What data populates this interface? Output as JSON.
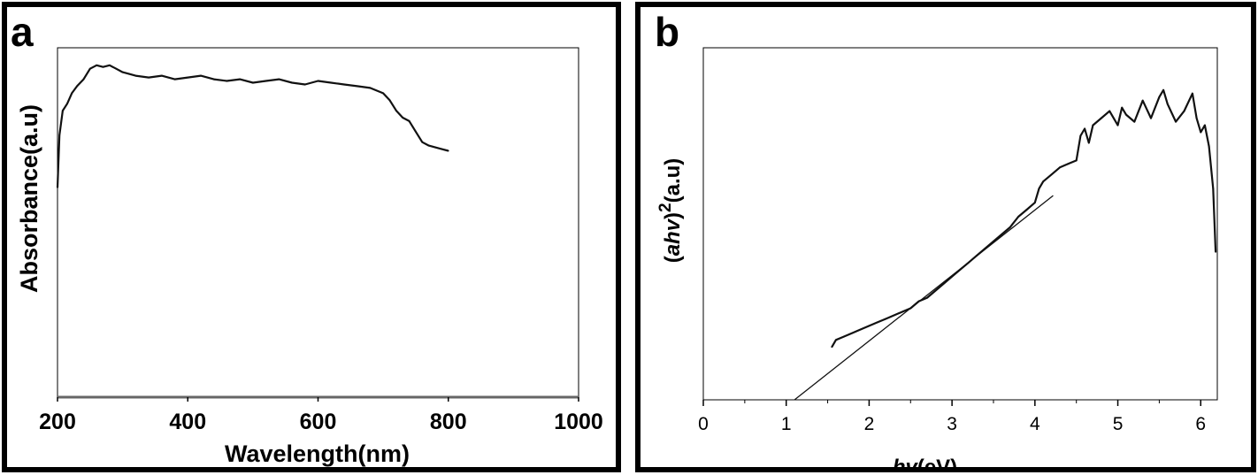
{
  "chart_data": [
    {
      "panel_label": "a",
      "type": "line",
      "xlabel": "Wavelength(nm)",
      "ylabel": "Absorbance(a.u)",
      "xlim": [
        200,
        1000
      ],
      "ylim": [
        0,
        1
      ],
      "xticks": [
        200,
        400,
        600,
        800,
        1000
      ],
      "grid": false,
      "series": [
        {
          "x": [
            200,
            203,
            208,
            215,
            222,
            230,
            240,
            250,
            260,
            270,
            280,
            290,
            300,
            310,
            320,
            340,
            360,
            380,
            400,
            420,
            440,
            460,
            480,
            500,
            520,
            540,
            560,
            580,
            600,
            620,
            640,
            660,
            680,
            700,
            710,
            720,
            730,
            740,
            750,
            760,
            770,
            780,
            790,
            800
          ],
          "y": [
            0.6,
            0.75,
            0.82,
            0.84,
            0.87,
            0.89,
            0.91,
            0.94,
            0.95,
            0.945,
            0.95,
            0.94,
            0.93,
            0.925,
            0.92,
            0.915,
            0.92,
            0.91,
            0.915,
            0.92,
            0.91,
            0.905,
            0.91,
            0.9,
            0.905,
            0.91,
            0.9,
            0.895,
            0.905,
            0.9,
            0.895,
            0.89,
            0.885,
            0.87,
            0.85,
            0.82,
            0.8,
            0.79,
            0.76,
            0.73,
            0.72,
            0.715,
            0.71,
            0.705
          ]
        }
      ]
    },
    {
      "panel_label": "b",
      "type": "line",
      "xlabel_parts": [
        "hv",
        "(eV)"
      ],
      "ylabel_parts": [
        "(",
        "ahv",
        ")",
        "2",
        "(a.u)"
      ],
      "xlim": [
        0,
        6.2
      ],
      "ylim": [
        0,
        1
      ],
      "xticks": [
        0,
        1,
        2,
        3,
        4,
        5,
        6
      ],
      "grid": false,
      "series": [
        {
          "x": [
            1.55,
            1.6,
            1.7,
            1.8,
            1.9,
            2.0,
            2.1,
            2.2,
            2.3,
            2.4,
            2.5,
            2.6,
            2.7,
            2.8,
            2.9,
            3.0,
            3.1,
            3.2,
            3.3,
            3.4,
            3.5,
            3.6,
            3.7,
            3.8,
            3.9,
            4.0,
            4.05,
            4.1,
            4.2,
            4.3,
            4.4,
            4.5,
            4.55,
            4.6,
            4.65,
            4.7,
            4.8,
            4.9,
            5.0,
            5.05,
            5.1,
            5.2,
            5.3,
            5.4,
            5.5,
            5.55,
            5.6,
            5.7,
            5.8,
            5.9,
            5.95,
            6.0,
            6.05,
            6.1,
            6.15,
            6.18
          ],
          "y": [
            0.15,
            0.17,
            0.18,
            0.19,
            0.2,
            0.21,
            0.22,
            0.23,
            0.24,
            0.25,
            0.26,
            0.28,
            0.29,
            0.31,
            0.33,
            0.35,
            0.37,
            0.39,
            0.41,
            0.43,
            0.45,
            0.47,
            0.49,
            0.52,
            0.54,
            0.56,
            0.6,
            0.62,
            0.64,
            0.66,
            0.67,
            0.68,
            0.75,
            0.77,
            0.73,
            0.78,
            0.8,
            0.82,
            0.78,
            0.83,
            0.81,
            0.79,
            0.85,
            0.8,
            0.86,
            0.88,
            0.84,
            0.79,
            0.82,
            0.87,
            0.8,
            0.76,
            0.78,
            0.72,
            0.6,
            0.42
          ]
        },
        {
          "x": [
            1.1,
            4.22
          ],
          "y": [
            0.0,
            0.58
          ]
        }
      ]
    }
  ]
}
